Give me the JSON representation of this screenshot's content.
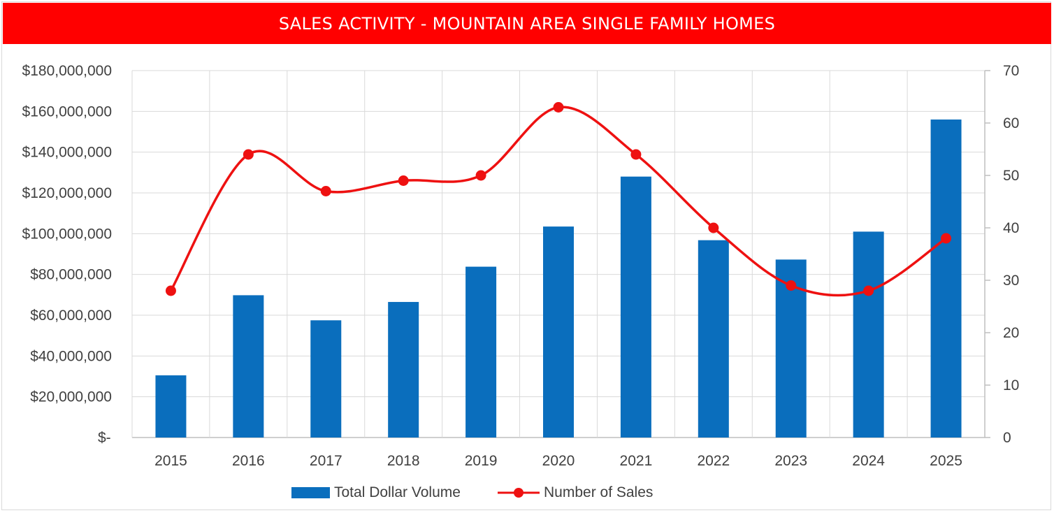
{
  "chart_data": {
    "type": "bar",
    "title": "SALES ACTIVITY - MOUNTAIN AREA SINGLE FAMILY HOMES",
    "categories": [
      "2015",
      "2016",
      "2017",
      "2018",
      "2019",
      "2020",
      "2021",
      "2022",
      "2023",
      "2024",
      "2025"
    ],
    "series": [
      {
        "name": "Total Dollar Volume",
        "type": "bar",
        "axis": "left",
        "values": [
          30500000,
          69800000,
          57500000,
          66500000,
          83800000,
          103500000,
          128000000,
          96800000,
          87300000,
          101000000,
          156000000
        ]
      },
      {
        "name": "Number of Sales",
        "type": "line",
        "axis": "right",
        "smooth": true,
        "values": [
          28,
          54,
          47,
          49,
          50,
          63,
          54,
          40,
          29,
          28,
          38
        ]
      }
    ],
    "y_left": {
      "range": [
        0,
        180000000
      ],
      "tick_labels": [
        "$-",
        "$20,000,000",
        "$40,000,000",
        "$60,000,000",
        "$80,000,000",
        "$100,000,000",
        "$120,000,000",
        "$140,000,000",
        "$160,000,000",
        "$180,000,000"
      ]
    },
    "y_right": {
      "range": [
        0,
        70
      ],
      "tick_labels": [
        "0",
        "10",
        "20",
        "30",
        "40",
        "50",
        "60",
        "70"
      ]
    },
    "grid": true,
    "legend": "bottom-center"
  },
  "colors": {
    "title_bg": "#ff0000",
    "title_text": "#ffffff",
    "bar": "#0a6ebd",
    "line": "#ee1111",
    "grid": "#d9d9d9",
    "axis": "#bfbfbf"
  }
}
